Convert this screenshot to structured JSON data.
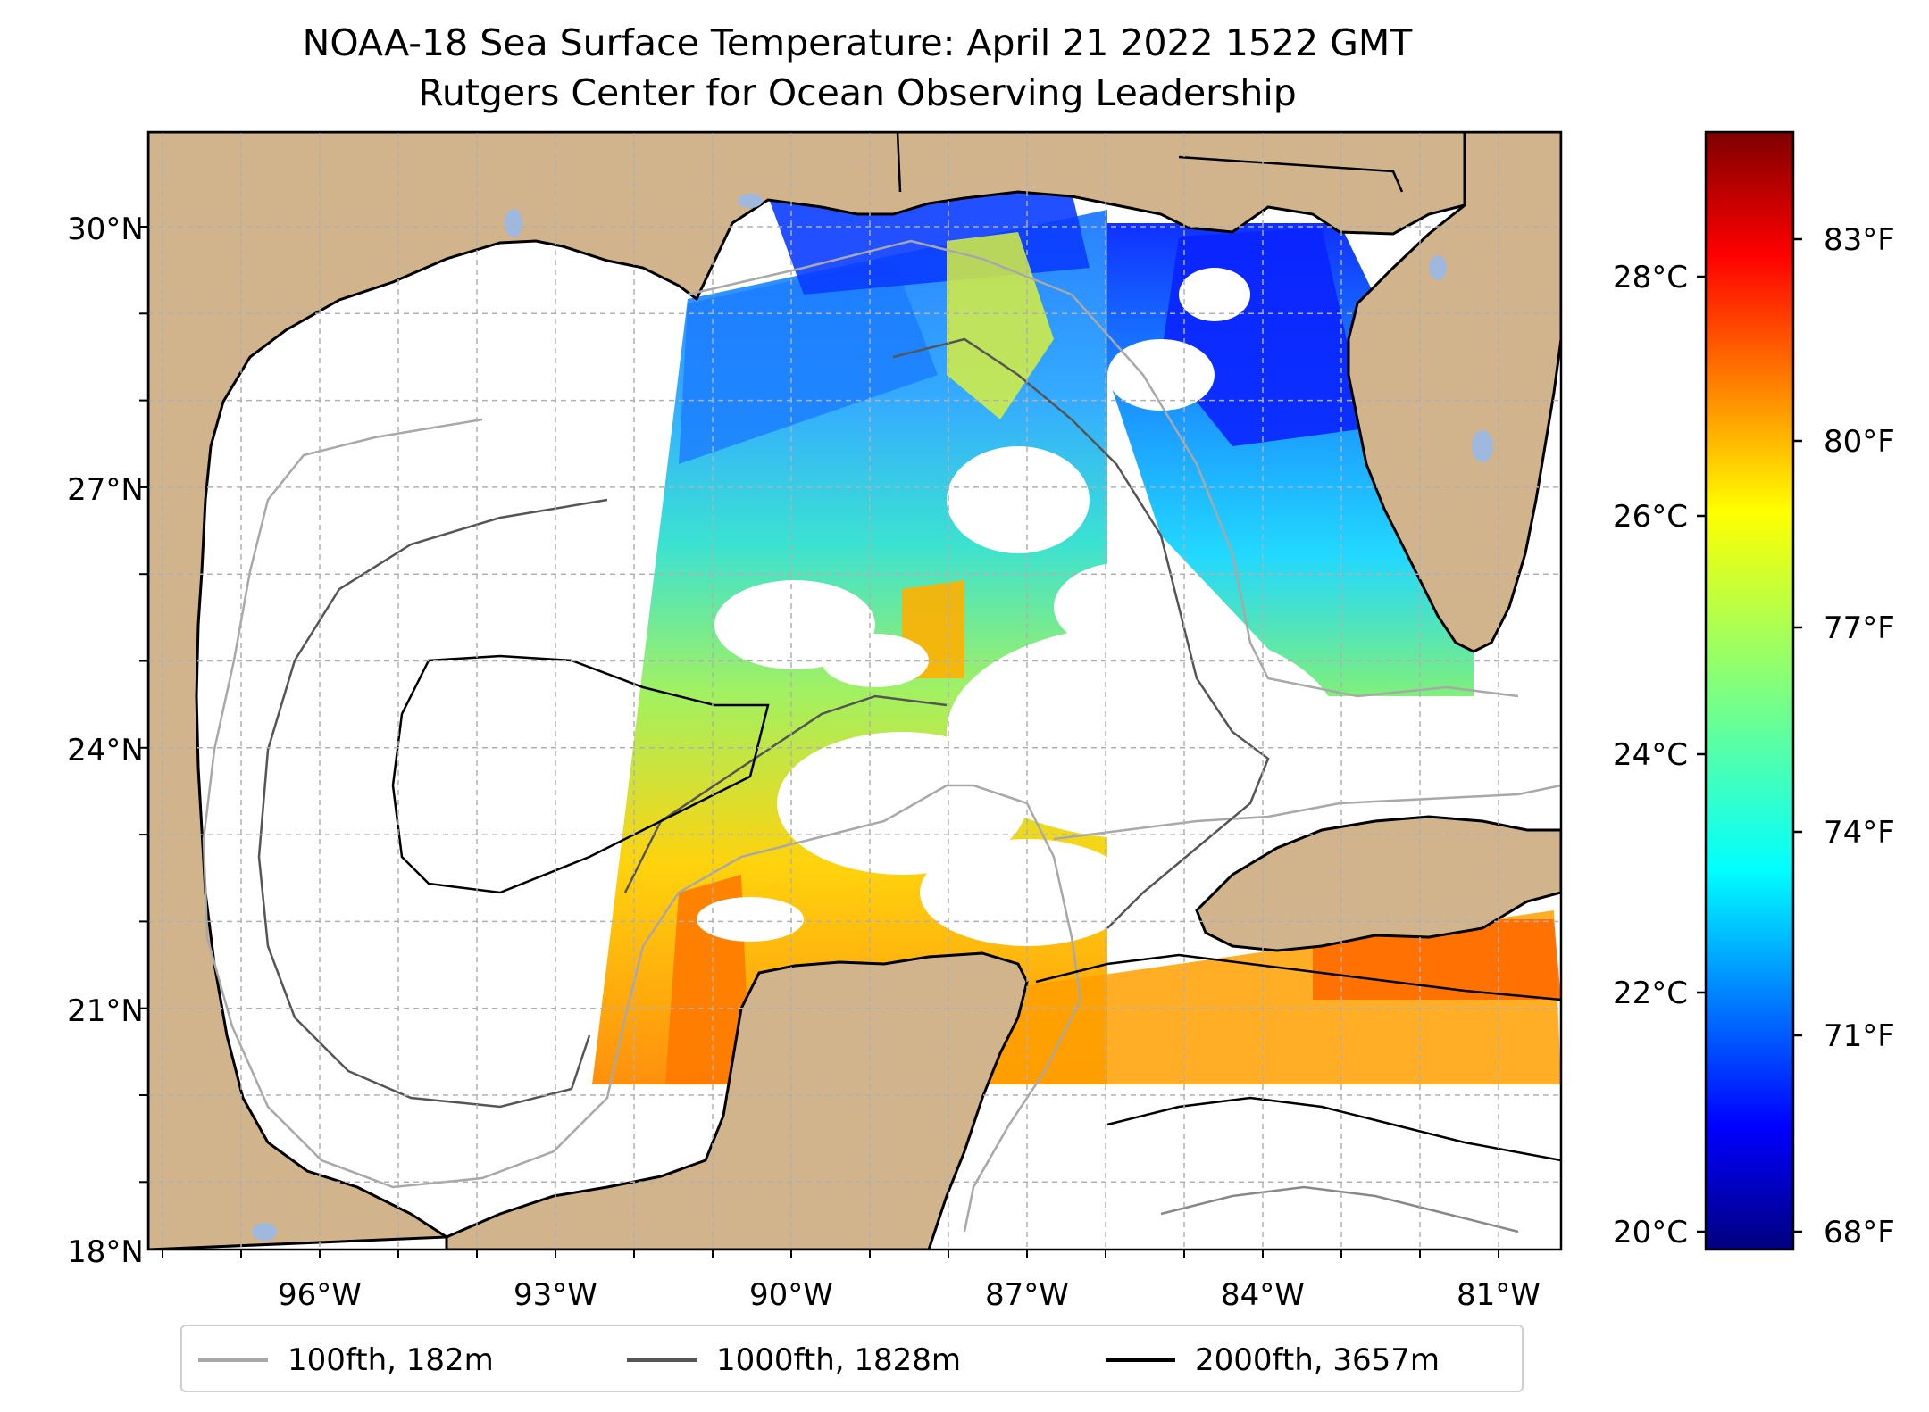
{
  "title": {
    "line1": "NOAA-18 Sea Surface Temperature: April 21 2022 1522 GMT",
    "line2": "Rutgers Center for Ocean Observing Leadership"
  },
  "axes": {
    "lat_labels": [
      "30°N",
      "27°N",
      "24°N",
      "21°N",
      "18°N"
    ],
    "lon_labels": [
      "96°W",
      "93°W",
      "90°W",
      "87°W",
      "84°W",
      "81°W"
    ]
  },
  "colorbar": {
    "celsius_labels": [
      "28°C",
      "26°C",
      "24°C",
      "22°C",
      "20°C"
    ],
    "fahrenheit_labels": [
      "83°F",
      "80°F",
      "77°F",
      "74°F",
      "71°F",
      "68°F"
    ],
    "colors": [
      "#00007f",
      "#0000ff",
      "#007fff",
      "#00ffff",
      "#7fff7f",
      "#ffff00",
      "#ff7f00",
      "#ff0000",
      "#7f0000"
    ]
  },
  "legend": {
    "items": [
      {
        "label": "100fth, 182m",
        "color": "#a8a8a8"
      },
      {
        "label": "1000fth, 1828m",
        "color": "#555555"
      },
      {
        "label": "2000fth, 3657m",
        "color": "#000000"
      }
    ]
  },
  "map_colors": {
    "land": "#d2b48c",
    "lake": "#9fb8de",
    "ocean": "#ffffff",
    "grid": "#b0b0b0"
  }
}
